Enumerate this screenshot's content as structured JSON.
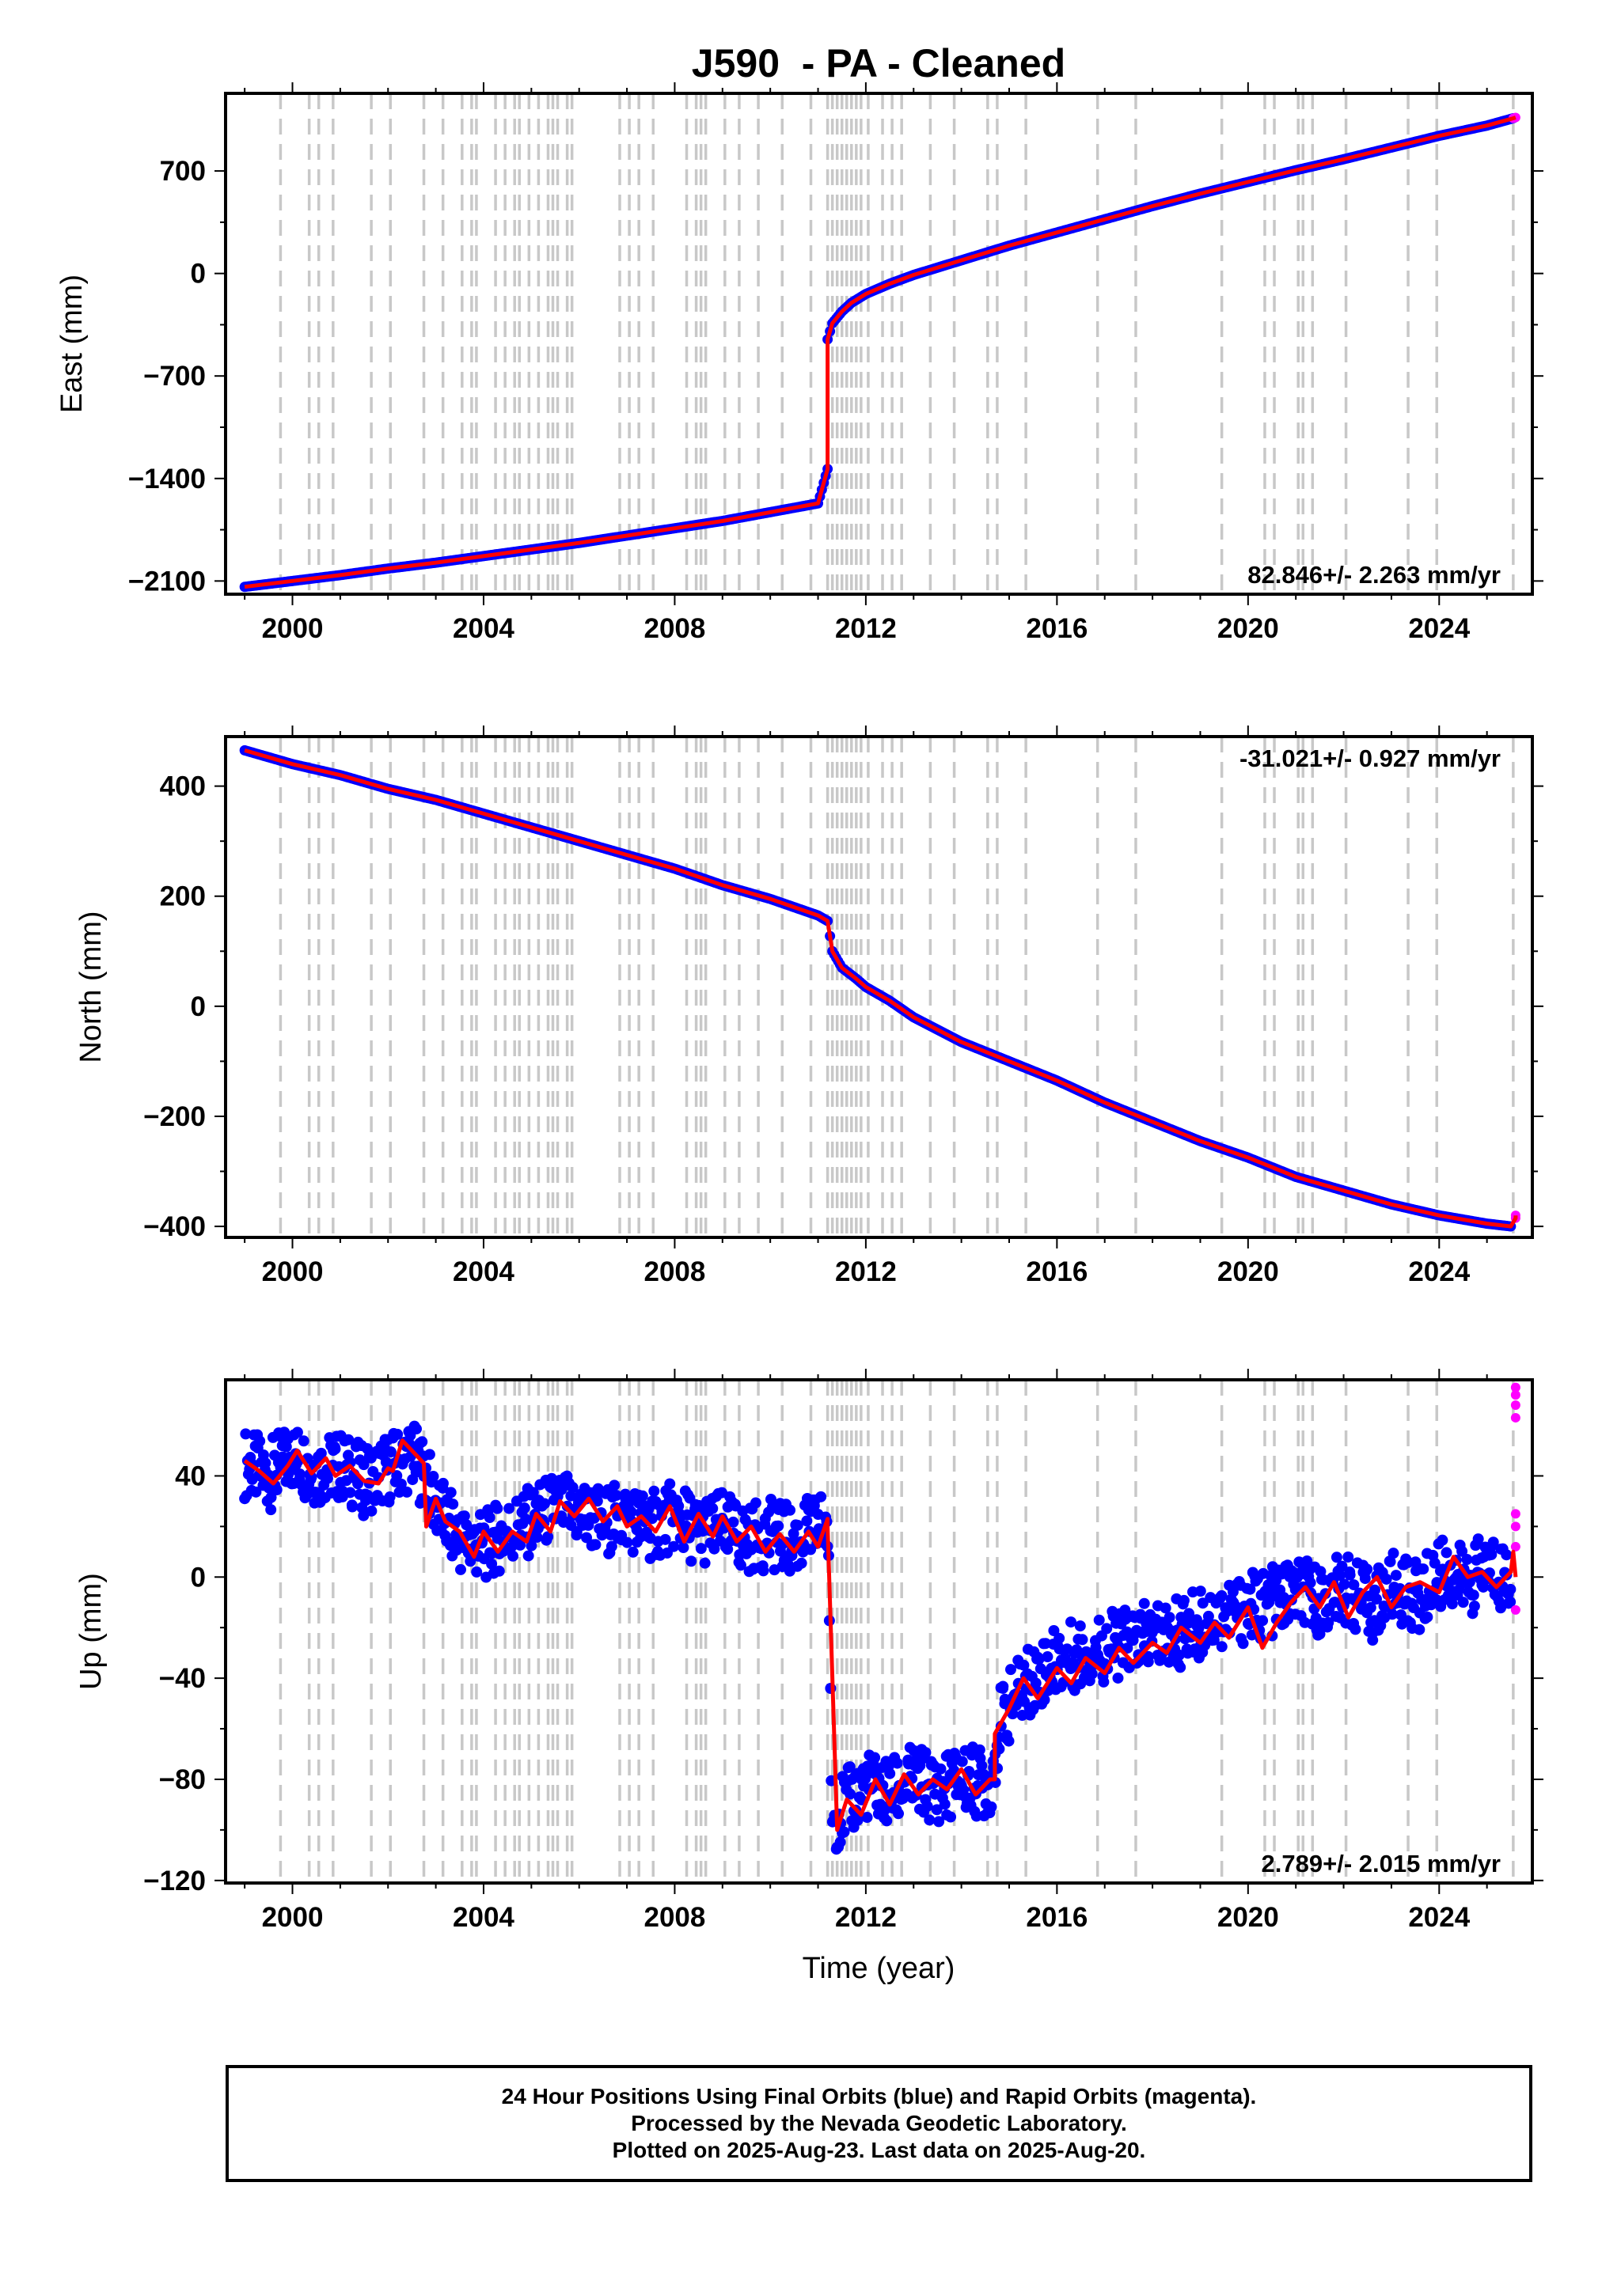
{
  "title": "J590  - PA - Cleaned",
  "xlabel": "Time (year)",
  "footer": [
    "24 Hour Positions Using Final Orbits (blue) and Rapid Orbits (magenta).",
    "Processed by the Nevada Geodetic Laboratory.",
    "Plotted on 2025-Aug-23. Last data on 2025-Aug-20."
  ],
  "colors": {
    "final_orbits": "#0000ff",
    "rapid_orbits": "#ff00ff",
    "model": "#ff0000",
    "steps": "#c8c8c8"
  },
  "chart_data": [
    {
      "type": "scatter",
      "ylabel": "East (mm)",
      "xlim": [
        1998.6,
        2025.95
      ],
      "ylim": [
        -2190,
        1230
      ],
      "xticks": [
        2000,
        2004,
        2008,
        2012,
        2016,
        2020,
        2024
      ],
      "yticks": [
        -2100,
        -1400,
        -700,
        0,
        700
      ],
      "rate_label": "82.846+/- 2.263 mm/yr",
      "rate_position": "bottom-right",
      "grid": false,
      "series": [
        {
          "name": "Final Orbits",
          "color": "#0000ff",
          "x": [
            1999.0,
            2000.0,
            2001.0,
            2002.0,
            2003.0,
            2004.0,
            2005.0,
            2006.0,
            2007.0,
            2008.0,
            2009.0,
            2010.0,
            2011.0,
            2011.2,
            2011.2,
            2011.3,
            2011.5,
            2011.7,
            2012.0,
            2012.5,
            2013.0,
            2014.0,
            2015.0,
            2016.0,
            2017.0,
            2018.0,
            2019.0,
            2020.0,
            2021.0,
            2022.0,
            2023.0,
            2024.0,
            2025.0,
            2025.55
          ],
          "y": [
            -2140,
            -2100,
            -2060,
            -2015,
            -1975,
            -1930,
            -1885,
            -1840,
            -1790,
            -1740,
            -1690,
            -1630,
            -1570,
            -1335,
            -450,
            -340,
            -260,
            -200,
            -140,
            -70,
            -10,
            90,
            190,
            280,
            370,
            460,
            545,
            625,
            705,
            780,
            860,
            940,
            1010,
            1060
          ]
        },
        {
          "name": "Rapid Orbits",
          "color": "#ff00ff",
          "x": [
            2025.55,
            2025.6
          ],
          "y": [
            1060,
            1065
          ]
        }
      ]
    },
    {
      "type": "scatter",
      "ylabel": "North (mm)",
      "xlim": [
        1998.6,
        2025.95
      ],
      "ylim": [
        -420,
        490
      ],
      "xticks": [
        2000,
        2004,
        2008,
        2012,
        2016,
        2020,
        2024
      ],
      "yticks": [
        -400,
        -200,
        0,
        200,
        400
      ],
      "rate_label": "-31.021+/- 0.927 mm/yr",
      "rate_position": "top-right",
      "grid": false,
      "series": [
        {
          "name": "Final Orbits",
          "color": "#0000ff",
          "x": [
            1999.0,
            2000.0,
            2001.0,
            2002.0,
            2003.0,
            2004.0,
            2005.0,
            2006.0,
            2007.0,
            2008.0,
            2009.0,
            2010.0,
            2011.0,
            2011.2,
            2011.3,
            2011.5,
            2011.8,
            2012.0,
            2012.5,
            2013.0,
            2014.0,
            2015.0,
            2016.0,
            2017.0,
            2018.0,
            2019.0,
            2020.0,
            2021.0,
            2022.0,
            2023.0,
            2024.0,
            2025.0,
            2025.5
          ],
          "y": [
            465,
            440,
            420,
            395,
            375,
            350,
            325,
            300,
            275,
            250,
            220,
            195,
            165,
            155,
            100,
            70,
            50,
            35,
            10,
            -20,
            -65,
            -100,
            -135,
            -175,
            -210,
            -245,
            -275,
            -310,
            -335,
            -360,
            -380,
            -395,
            -400
          ]
        },
        {
          "name": "Rapid Orbits",
          "color": "#ff00ff",
          "x": [
            2025.6,
            2025.6
          ],
          "y": [
            -385,
            -380
          ]
        }
      ]
    },
    {
      "type": "scatter",
      "ylabel": "Up (mm)",
      "xlim": [
        1998.6,
        2025.95
      ],
      "ylim": [
        -121,
        78
      ],
      "xticks": [
        2000,
        2004,
        2008,
        2012,
        2016,
        2020,
        2024
      ],
      "yticks": [
        -120,
        -80,
        -40,
        0,
        40
      ],
      "rate_label": "2.789+/- 2.015 mm/yr",
      "rate_position": "bottom-right",
      "grid": false,
      "series": [
        {
          "name": "Final Orbits",
          "color": "#0000ff",
          "x": [
            1999.0,
            1999.5,
            2000.0,
            2000.5,
            2001.0,
            2001.5,
            2002.0,
            2002.5,
            2002.8,
            2003.0,
            2003.5,
            2004.0,
            2004.5,
            2005.0,
            2005.5,
            2006.0,
            2006.5,
            2007.0,
            2007.5,
            2008.0,
            2008.5,
            2009.0,
            2009.5,
            2010.0,
            2010.5,
            2011.0,
            2011.2,
            2011.3,
            2011.6,
            2012.0,
            2012.5,
            2013.0,
            2013.5,
            2014.0,
            2014.6,
            2014.8,
            2015.2,
            2015.6,
            2016.0,
            2016.6,
            2017.0,
            2017.6,
            2018.0,
            2018.6,
            2019.0,
            2019.6,
            2020.0,
            2020.5,
            2021.0,
            2021.6,
            2022.0,
            2022.6,
            2023.0,
            2023.6,
            2024.0,
            2024.6,
            2025.0,
            2025.5
          ],
          "y": [
            45,
            40,
            48,
            42,
            44,
            38,
            43,
            48,
            40,
            28,
            15,
            12,
            18,
            22,
            28,
            25,
            22,
            24,
            20,
            24,
            18,
            20,
            15,
            17,
            14,
            20,
            20,
            -96,
            -90,
            -82,
            -86,
            -80,
            -84,
            -80,
            -82,
            -58,
            -45,
            -38,
            -33,
            -30,
            -28,
            -25,
            -24,
            -22,
            -18,
            -14,
            -12,
            -10,
            -6,
            -10,
            -4,
            -12,
            -4,
            -8,
            2,
            -2,
            4,
            0
          ]
        },
        {
          "name": "Rapid Orbits",
          "color": "#ff00ff",
          "x": [
            2025.6,
            2025.6,
            2025.6,
            2025.6,
            2025.6,
            2025.6,
            2025.6,
            2025.6
          ],
          "y": [
            75,
            72,
            68,
            63,
            25,
            20,
            12,
            -13
          ]
        }
      ],
      "model": {
        "color": "#ff0000",
        "x": [
          1999.0,
          1999.3,
          1999.6,
          1999.9,
          2000.1,
          2000.4,
          2000.7,
          2000.9,
          2001.2,
          2001.5,
          2001.8,
          2002.0,
          2002.1,
          2002.3,
          2002.6,
          2002.75,
          2002.8,
          2003.0,
          2003.2,
          2003.5,
          2003.8,
          2004.0,
          2004.3,
          2004.6,
          2004.9,
          2005.1,
          2005.4,
          2005.6,
          2005.9,
          2006.2,
          2006.5,
          2006.8,
          2007.0,
          2007.3,
          2007.6,
          2007.9,
          2008.2,
          2008.5,
          2008.8,
          2009.0,
          2009.3,
          2009.6,
          2009.9,
          2010.2,
          2010.5,
          2010.8,
          2011.0,
          2011.2,
          2011.2,
          2011.4,
          2011.6,
          2011.9,
          2012.2,
          2012.5,
          2012.8,
          2013.1,
          2013.4,
          2013.7,
          2014.0,
          2014.3,
          2014.6,
          2014.7,
          2014.7,
          2015.0,
          2015.3,
          2015.6,
          2016.0,
          2016.3,
          2016.6,
          2017.0,
          2017.3,
          2017.6,
          2018.0,
          2018.3,
          2018.6,
          2019.0,
          2019.3,
          2019.6,
          2020.0,
          2020.3,
          2020.6,
          2020.9,
          2021.2,
          2021.5,
          2021.8,
          2022.1,
          2022.4,
          2022.7,
          2023.0,
          2023.3,
          2023.6,
          2024.0,
          2024.3,
          2024.6,
          2024.9,
          2025.2,
          2025.5,
          2025.55,
          2025.6
        ],
        "y": [
          46,
          42,
          37,
          44,
          50,
          41,
          47,
          40,
          44,
          38,
          37,
          43,
          42,
          54,
          48,
          45,
          20,
          31,
          22,
          18,
          8,
          18,
          10,
          18,
          14,
          25,
          18,
          30,
          24,
          31,
          22,
          28,
          20,
          24,
          18,
          28,
          14,
          25,
          16,
          24,
          14,
          20,
          10,
          17,
          10,
          18,
          12,
          23,
          20,
          -100,
          -88,
          -94,
          -80,
          -90,
          -78,
          -86,
          -80,
          -84,
          -76,
          -86,
          -80,
          -80,
          -62,
          -52,
          -40,
          -48,
          -36,
          -42,
          -32,
          -38,
          -28,
          -34,
          -26,
          -30,
          -20,
          -26,
          -18,
          -24,
          -12,
          -28,
          -18,
          -10,
          -4,
          -12,
          -2,
          -16,
          -6,
          0,
          -12,
          -4,
          -2,
          -6,
          8,
          0,
          2,
          -4,
          2,
          10,
          0
        ]
      }
    }
  ],
  "offset_epochs": [
    1999.75,
    2000.35,
    2000.55,
    2000.85,
    2001.65,
    2002.05,
    2002.75,
    2003.15,
    2003.55,
    2003.75,
    2003.85,
    2004.25,
    2004.45,
    2004.65,
    2004.75,
    2004.95,
    2005.15,
    2005.35,
    2005.45,
    2005.55,
    2005.75,
    2005.85,
    2006.85,
    2007.05,
    2007.25,
    2007.55,
    2008.25,
    2008.45,
    2008.55,
    2008.65,
    2009.05,
    2009.35,
    2009.75,
    2010.25,
    2010.85,
    2011.2,
    2011.3,
    2011.4,
    2011.5,
    2011.6,
    2011.7,
    2011.8,
    2011.9,
    2012.05,
    2012.35,
    2012.55,
    2012.75,
    2013.35,
    2013.85,
    2014.55,
    2014.75,
    2015.35,
    2016.85,
    2017.65,
    2019.45,
    2020.35,
    2020.55,
    2021.05,
    2021.15,
    2021.35,
    2022.05,
    2023.35,
    2023.95,
    2025.55
  ]
}
